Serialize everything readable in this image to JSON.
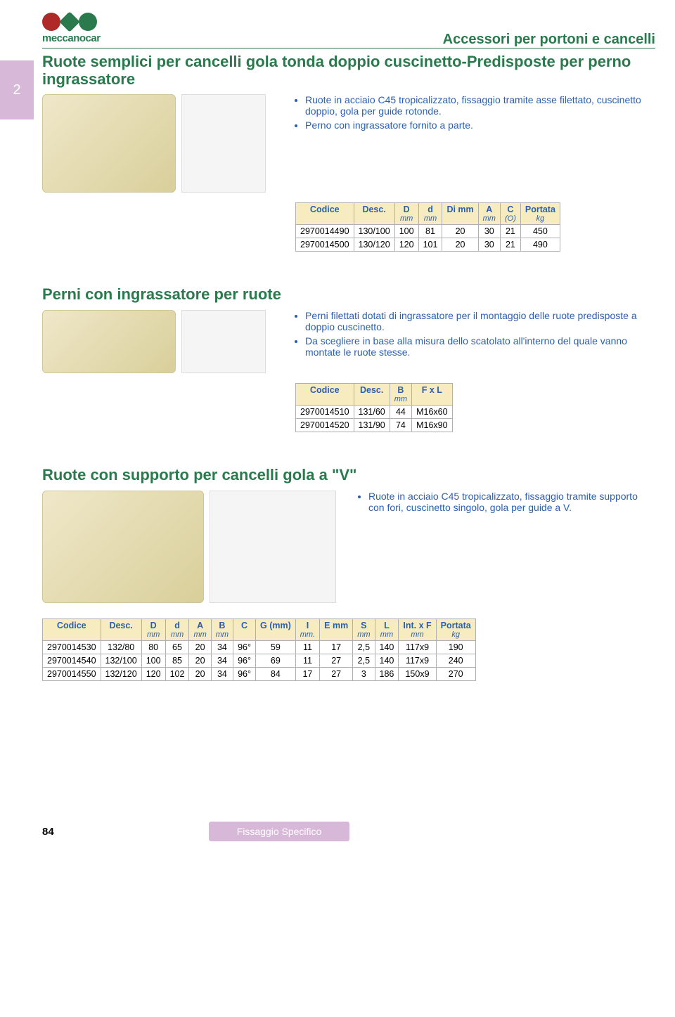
{
  "header": {
    "brand": "meccanocar",
    "category": "Accessori per portoni e cancelli",
    "side_tab": "2"
  },
  "section1": {
    "title": "Ruote semplici per cancelli gola tonda doppio cuscinetto-Predisposte per perno ingrassatore",
    "bullets": [
      "Ruote in acciaio C45 tropicalizzato, fissaggio tramite asse filettato, cuscinetto doppio, gola per guide rotonde.",
      "Perno con ingrassatore fornito a parte."
    ],
    "table": {
      "columns": [
        {
          "label": "Codice",
          "unit": ""
        },
        {
          "label": "Desc.",
          "unit": ""
        },
        {
          "label": "D",
          "unit": "mm"
        },
        {
          "label": "d",
          "unit": "mm"
        },
        {
          "label": "Di mm",
          "unit": ""
        },
        {
          "label": "A",
          "unit": "mm"
        },
        {
          "label": "C",
          "unit": "(O)"
        },
        {
          "label": "Portata",
          "unit": "kg"
        }
      ],
      "rows": [
        [
          "2970014490",
          "130/100",
          "100",
          "81",
          "20",
          "30",
          "21",
          "450"
        ],
        [
          "2970014500",
          "130/120",
          "120",
          "101",
          "20",
          "30",
          "21",
          "490"
        ]
      ]
    }
  },
  "section2": {
    "title": "Perni con ingrassatore per ruote",
    "bullets": [
      "Perni filettati dotati di ingrassatore per il montaggio delle ruote predisposte a doppio cuscinetto.",
      "Da scegliere in base alla misura dello scatolato all'interno del quale vanno montate le ruote stesse."
    ],
    "table": {
      "columns": [
        {
          "label": "Codice",
          "unit": ""
        },
        {
          "label": "Desc.",
          "unit": ""
        },
        {
          "label": "B",
          "unit": "mm"
        },
        {
          "label": "F x L",
          "unit": ""
        }
      ],
      "rows": [
        [
          "2970014510",
          "131/60",
          "44",
          "M16x60"
        ],
        [
          "2970014520",
          "131/90",
          "74",
          "M16x90"
        ]
      ]
    }
  },
  "section3": {
    "title": "Ruote con supporto per cancelli gola a \"V\"",
    "bullets": [
      "Ruote in acciaio C45 tropicalizzato, fissaggio tramite supporto con fori, cuscinetto singolo, gola per guide a V."
    ],
    "table": {
      "columns": [
        {
          "label": "Codice",
          "unit": ""
        },
        {
          "label": "Desc.",
          "unit": ""
        },
        {
          "label": "D",
          "unit": "mm"
        },
        {
          "label": "d",
          "unit": "mm"
        },
        {
          "label": "A",
          "unit": "mm"
        },
        {
          "label": "B",
          "unit": "mm"
        },
        {
          "label": "C",
          "unit": ""
        },
        {
          "label": "G (mm)",
          "unit": ""
        },
        {
          "label": "I",
          "unit": "mm."
        },
        {
          "label": "E mm",
          "unit": ""
        },
        {
          "label": "S",
          "unit": "mm"
        },
        {
          "label": "L",
          "unit": "mm"
        },
        {
          "label": "Int. x F",
          "unit": "mm"
        },
        {
          "label": "Portata",
          "unit": "kg"
        }
      ],
      "rows": [
        [
          "2970014530",
          "132/80",
          "80",
          "65",
          "20",
          "34",
          "96°",
          "59",
          "11",
          "17",
          "2,5",
          "140",
          "117x9",
          "190"
        ],
        [
          "2970014540",
          "132/100",
          "100",
          "85",
          "20",
          "34",
          "96°",
          "69",
          "11",
          "27",
          "2,5",
          "140",
          "117x9",
          "240"
        ],
        [
          "2970014550",
          "132/120",
          "120",
          "102",
          "20",
          "34",
          "96°",
          "84",
          "17",
          "27",
          "3",
          "186",
          "150x9",
          "270"
        ]
      ]
    }
  },
  "footer": {
    "page_num": "84",
    "label": "Fissaggio Specifico"
  },
  "colors": {
    "green": "#2a7a4e",
    "blue_text": "#2a5fb0",
    "table_header_bg": "#f6ecc0",
    "side_tab_bg": "#d7b8d8"
  }
}
